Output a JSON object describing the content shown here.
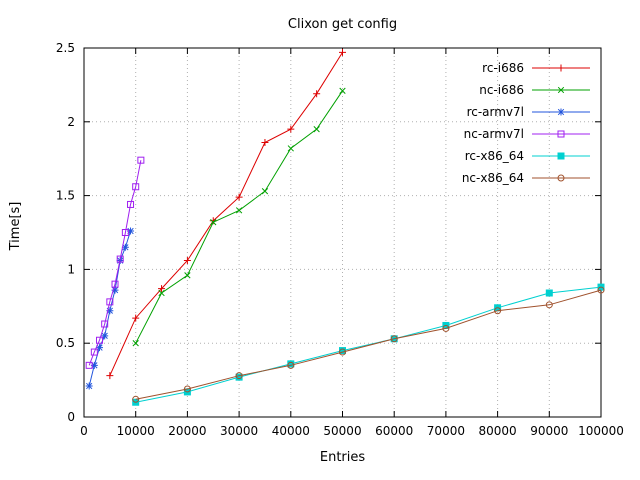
{
  "chart_data": {
    "type": "line",
    "title": "Clixon get config",
    "xlabel": "Entries",
    "ylabel": "Time[s]",
    "xlim": [
      0,
      100000
    ],
    "ylim": [
      0,
      2.5
    ],
    "xticks": [
      0,
      10000,
      20000,
      30000,
      40000,
      50000,
      60000,
      70000,
      80000,
      90000,
      100000
    ],
    "yticks": [
      0,
      0.5,
      1,
      1.5,
      2,
      2.5
    ],
    "grid": true,
    "grid_color": "#b0b0b0",
    "border_color": "#000000",
    "legend_position": "top-right-inside",
    "series": [
      {
        "name": "rc-i686",
        "color": "#dd0000",
        "marker": "plus",
        "x": [
          5000,
          10000,
          15000,
          20000,
          25000,
          30000,
          35000,
          40000,
          45000,
          50000
        ],
        "y": [
          0.28,
          0.67,
          0.87,
          1.06,
          1.33,
          1.49,
          1.86,
          1.95,
          2.19,
          2.47
        ]
      },
      {
        "name": "nc-i686",
        "color": "#00a000",
        "marker": "cross",
        "x": [
          10000,
          15000,
          20000,
          25000,
          30000,
          35000,
          40000,
          45000,
          50000
        ],
        "y": [
          0.5,
          0.84,
          0.96,
          1.32,
          1.4,
          1.53,
          1.82,
          1.95,
          2.21
        ]
      },
      {
        "name": "rc-armv7l",
        "color": "#2255dd",
        "marker": "asterisk",
        "x": [
          1000,
          2000,
          3000,
          4000,
          5000,
          6000,
          7000,
          8000,
          9000
        ],
        "y": [
          0.21,
          0.35,
          0.47,
          0.55,
          0.72,
          0.86,
          1.06,
          1.15,
          1.26
        ]
      },
      {
        "name": "nc-armv7l",
        "color": "#a020f0",
        "marker": "square-open",
        "x": [
          1000,
          2000,
          3000,
          4000,
          5000,
          6000,
          7000,
          8000,
          9000,
          10000,
          11000
        ],
        "y": [
          0.35,
          0.44,
          0.52,
          0.63,
          0.78,
          0.9,
          1.07,
          1.25,
          1.44,
          1.56,
          1.74
        ]
      },
      {
        "name": "rc-x86_64",
        "color": "#00d0d0",
        "marker": "square-filled",
        "x": [
          10000,
          20000,
          30000,
          40000,
          50000,
          60000,
          70000,
          80000,
          90000,
          100000
        ],
        "y": [
          0.1,
          0.17,
          0.27,
          0.36,
          0.45,
          0.53,
          0.62,
          0.74,
          0.84,
          0.88
        ]
      },
      {
        "name": "nc-x86_64",
        "color": "#a0522d",
        "marker": "circle-open",
        "x": [
          10000,
          20000,
          30000,
          40000,
          50000,
          60000,
          70000,
          80000,
          90000,
          100000
        ],
        "y": [
          0.12,
          0.19,
          0.28,
          0.35,
          0.44,
          0.53,
          0.6,
          0.72,
          0.76,
          0.86
        ]
      }
    ]
  }
}
